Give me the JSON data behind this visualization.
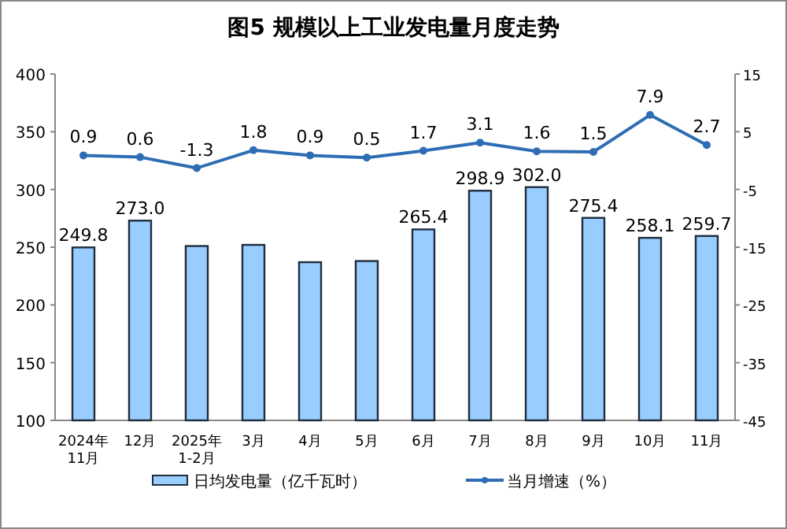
{
  "chart_data": {
    "type": "bar",
    "title": "图5  规模以上工业发电量月度走势",
    "categories": [
      "2024年\n11月",
      "12月",
      "2025年\n1-2月",
      "3月",
      "4月",
      "5月",
      "6月",
      "7月",
      "8月",
      "9月",
      "10月",
      "11月"
    ],
    "series": [
      {
        "name": "日均发电量（亿千瓦时）",
        "color": "#99ccff",
        "values": [
          249.8,
          273.0,
          251,
          252,
          237,
          238,
          265.4,
          298.9,
          302.0,
          275.4,
          258.1,
          259.7
        ],
        "value_labels": [
          "249.8",
          "273.0",
          null,
          null,
          null,
          null,
          "265.4",
          "298.9",
          "302.0",
          "275.4",
          "258.1",
          "259.7"
        ]
      },
      {
        "name": "当月增速（%）",
        "type": "line",
        "axis": "y2",
        "color": "#2e6db4",
        "values": [
          0.9,
          0.6,
          -1.3,
          1.8,
          0.9,
          0.5,
          1.7,
          3.1,
          1.6,
          1.5,
          7.9,
          2.7
        ],
        "value_labels": [
          "0.9",
          "0.6",
          "-1.3",
          "1.8",
          "0.9",
          "0.5",
          "1.7",
          "3.1",
          "1.6",
          "1.5",
          "7.9",
          "2.7"
        ]
      }
    ],
    "ylim": [
      100,
      400
    ],
    "yticks": [
      100,
      150,
      200,
      250,
      300,
      350,
      400
    ],
    "y2lim": [
      -45,
      15
    ],
    "y2ticks": [
      -45,
      -35,
      -25,
      -15,
      -5,
      5,
      15
    ],
    "legend": "bottom",
    "marker": "circle",
    "grid": false
  }
}
